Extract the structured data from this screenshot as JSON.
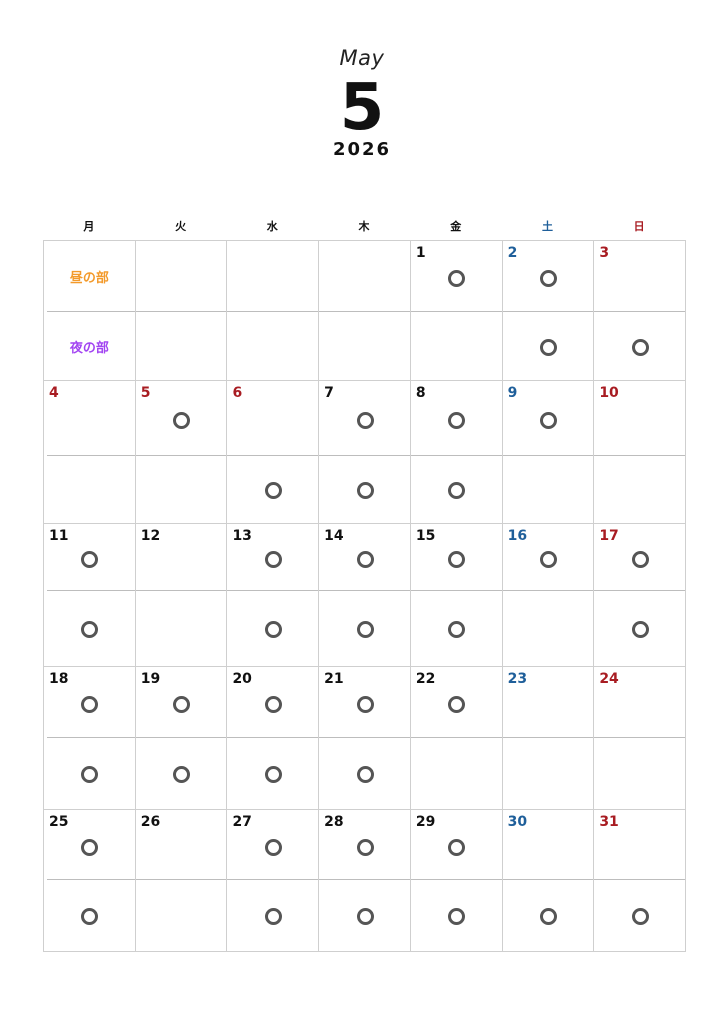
{
  "header": {
    "month_en": "May",
    "month_num": "5",
    "year": "2026"
  },
  "weekdays": [
    {
      "label": "月",
      "color": "#111111"
    },
    {
      "label": "火",
      "color": "#111111"
    },
    {
      "label": "水",
      "color": "#111111"
    },
    {
      "label": "木",
      "color": "#111111"
    },
    {
      "label": "金",
      "color": "#111111"
    },
    {
      "label": "土",
      "color": "#1f5f9a"
    },
    {
      "label": "日",
      "color": "#a81c22"
    }
  ],
  "session_labels": {
    "day": "昼の部",
    "day_color": "#f39a2b",
    "night": "夜の部",
    "night_color": "#a244f2"
  },
  "colors": {
    "weekday": "#111111",
    "saturday": "#1f5f9a",
    "holiday": "#a81c22",
    "mark": "#555555"
  },
  "weeks": [
    [
      {
        "date": "",
        "labels": true
      },
      {
        "date": ""
      },
      {
        "date": ""
      },
      {
        "date": ""
      },
      {
        "date": "1",
        "type": "weekday",
        "day": true,
        "night": false
      },
      {
        "date": "2",
        "type": "saturday",
        "day": true,
        "night": true
      },
      {
        "date": "3",
        "type": "holiday",
        "day": false,
        "night": true
      }
    ],
    [
      {
        "date": "4",
        "type": "holiday",
        "day": false,
        "night": false
      },
      {
        "date": "5",
        "type": "holiday",
        "day": true,
        "night": false
      },
      {
        "date": "6",
        "type": "holiday",
        "day": false,
        "night": true
      },
      {
        "date": "7",
        "type": "weekday",
        "day": true,
        "night": true
      },
      {
        "date": "8",
        "type": "weekday",
        "day": true,
        "night": true
      },
      {
        "date": "9",
        "type": "saturday",
        "day": true,
        "night": false
      },
      {
        "date": "10",
        "type": "holiday",
        "day": false,
        "night": false
      }
    ],
    [
      {
        "date": "11",
        "type": "weekday",
        "day": true,
        "night": true
      },
      {
        "date": "12",
        "type": "weekday",
        "day": false,
        "night": false
      },
      {
        "date": "13",
        "type": "weekday",
        "day": true,
        "night": true
      },
      {
        "date": "14",
        "type": "weekday",
        "day": true,
        "night": true
      },
      {
        "date": "15",
        "type": "weekday",
        "day": true,
        "night": true
      },
      {
        "date": "16",
        "type": "saturday",
        "day": true,
        "night": false
      },
      {
        "date": "17",
        "type": "holiday",
        "day": true,
        "night": true
      }
    ],
    [
      {
        "date": "18",
        "type": "weekday",
        "day": true,
        "night": true
      },
      {
        "date": "19",
        "type": "weekday",
        "day": true,
        "night": true
      },
      {
        "date": "20",
        "type": "weekday",
        "day": true,
        "night": true
      },
      {
        "date": "21",
        "type": "weekday",
        "day": true,
        "night": true
      },
      {
        "date": "22",
        "type": "weekday",
        "day": true,
        "night": false
      },
      {
        "date": "23",
        "type": "saturday",
        "day": false,
        "night": false
      },
      {
        "date": "24",
        "type": "holiday",
        "day": false,
        "night": false
      }
    ],
    [
      {
        "date": "25",
        "type": "weekday",
        "day": true,
        "night": true
      },
      {
        "date": "26",
        "type": "weekday",
        "day": false,
        "night": false
      },
      {
        "date": "27",
        "type": "weekday",
        "day": true,
        "night": true
      },
      {
        "date": "28",
        "type": "weekday",
        "day": true,
        "night": true
      },
      {
        "date": "29",
        "type": "weekday",
        "day": true,
        "night": true
      },
      {
        "date": "30",
        "type": "saturday",
        "day": false,
        "night": true
      },
      {
        "date": "31",
        "type": "holiday",
        "day": false,
        "night": true
      }
    ]
  ]
}
